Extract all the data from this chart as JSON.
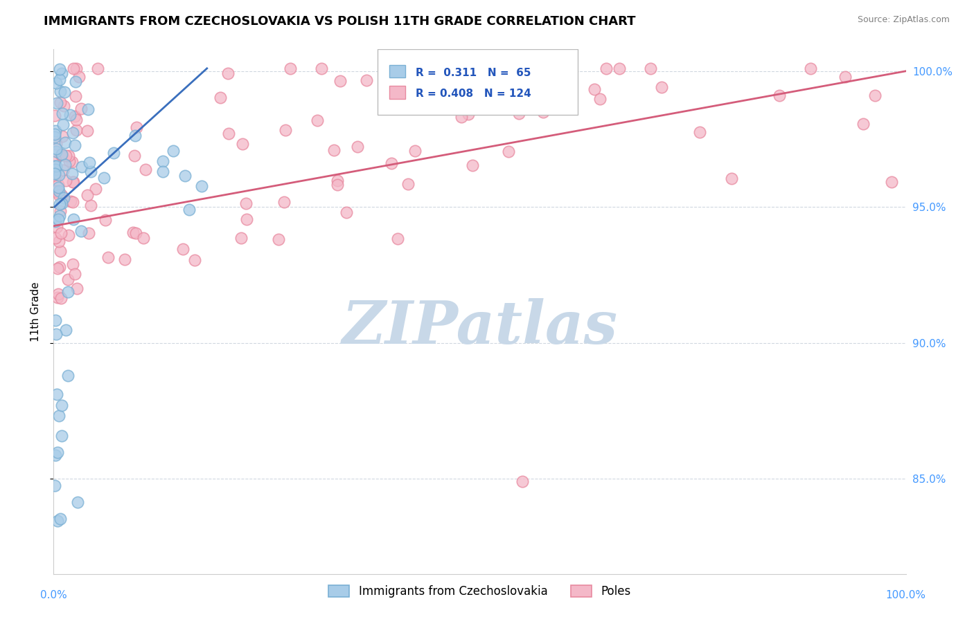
{
  "title": "IMMIGRANTS FROM CZECHOSLOVAKIA VS POLISH 11TH GRADE CORRELATION CHART",
  "source": "Source: ZipAtlas.com",
  "ylabel": "11th Grade",
  "legend_blue_r": "0.311",
  "legend_blue_n": "65",
  "legend_pink_r": "0.408",
  "legend_pink_n": "124",
  "legend_blue_label": "Immigrants from Czechoslovakia",
  "legend_pink_label": "Poles",
  "blue_color": "#a8cce8",
  "blue_edge_color": "#7ab0d4",
  "pink_color": "#f4b8c8",
  "pink_edge_color": "#e88aa0",
  "blue_line_color": "#3a6fbd",
  "pink_line_color": "#d45c7a",
  "ytick_labels": [
    "85.0%",
    "90.0%",
    "95.0%",
    "100.0%"
  ],
  "ytick_values": [
    0.85,
    0.9,
    0.95,
    1.0
  ],
  "ymin": 0.815,
  "ymax": 1.008,
  "xmin": 0.0,
  "xmax": 1.0,
  "watermark_text": "ZIPatlas",
  "watermark_color": "#c8d8e8",
  "grid_color": "#d0d8e0",
  "tick_label_color": "#4499ff",
  "blue_line_x": [
    0.001,
    0.18
  ],
  "blue_line_y": [
    0.95,
    1.001
  ],
  "pink_line_x": [
    0.0,
    1.0
  ],
  "pink_line_y": [
    0.943,
    1.0
  ]
}
